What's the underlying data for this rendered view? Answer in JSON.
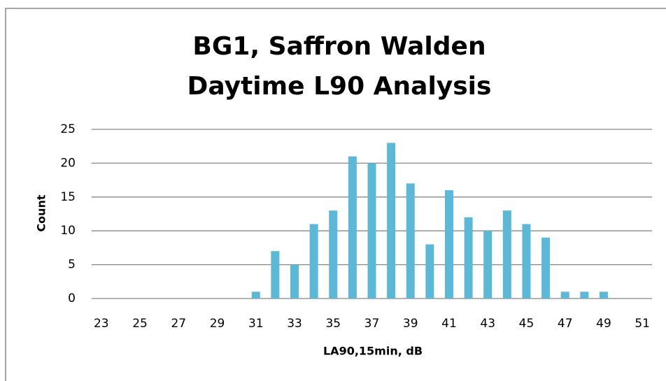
{
  "chart_data": {
    "type": "bar",
    "title": [
      "BG1, Saffron Walden",
      "Daytime L90 Analysis"
    ],
    "x_label": "LA90,15min, dB",
    "y_label": "Count",
    "categories": [
      "23",
      null,
      "25",
      null,
      "27",
      null,
      "29",
      null,
      "31",
      null,
      "33",
      null,
      "35",
      null,
      "37",
      null,
      "39",
      null,
      "41",
      null,
      "43",
      null,
      "45",
      null,
      "47",
      null,
      "49",
      null,
      "51"
    ],
    "values": [
      0,
      0,
      0,
      0,
      0,
      0,
      0,
      0,
      1,
      7,
      5,
      11,
      13,
      21,
      20,
      23,
      17,
      8,
      16,
      12,
      10,
      13,
      11,
      9,
      1,
      1,
      1,
      0,
      0
    ],
    "color": "#5bb8d6",
    "ylim": [
      0,
      25
    ],
    "yticks": [
      0,
      5,
      10,
      15,
      20,
      25
    ],
    "grid": true
  }
}
